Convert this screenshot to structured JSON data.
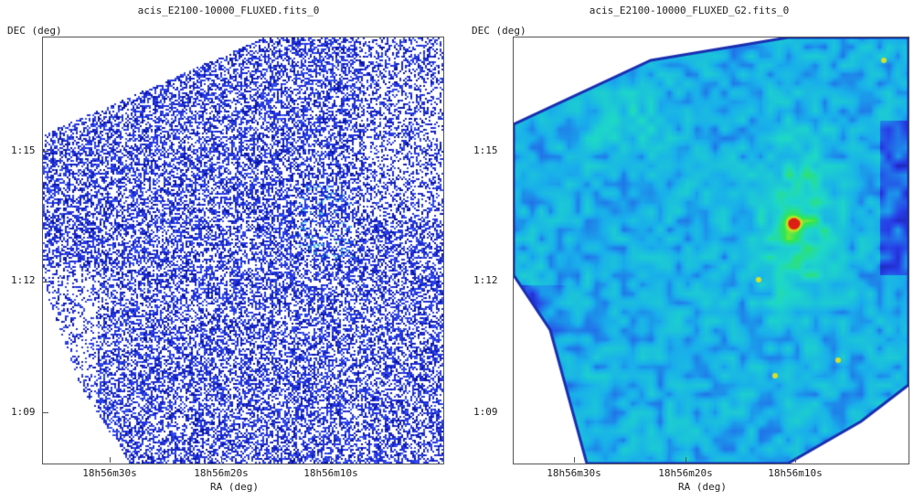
{
  "panels": [
    {
      "title": "acis_E2100-10000_FLUXED.fits_0",
      "ylabel": "DEC (deg)",
      "xlabel": "RA (deg)",
      "yticks": [
        "1:15",
        "1:12",
        "1:09"
      ],
      "xticks": [
        "18h56m30s",
        "18h56m20s",
        "18h56m10s"
      ],
      "colormap": "sparse blue noise"
    },
    {
      "title": "acis_E2100-10000_FLUXED_G2.fits_0",
      "ylabel": "DEC (deg)",
      "xlabel": "RA (deg)",
      "yticks": [
        "1:15",
        "1:12",
        "1:09"
      ],
      "xticks": [
        "18h56m30s",
        "18h56m20s",
        "18h56m10s"
      ],
      "colormap": "smoothed rainbow"
    }
  ],
  "colors": {
    "pixel_blue": "#1f2fd9",
    "pixel_dark": "#0a14a0",
    "smooth_low": "#1a40e0",
    "smooth_mid": "#19c8e8",
    "smooth_high": "#2ee85a",
    "hotspot": "#d8261a"
  }
}
